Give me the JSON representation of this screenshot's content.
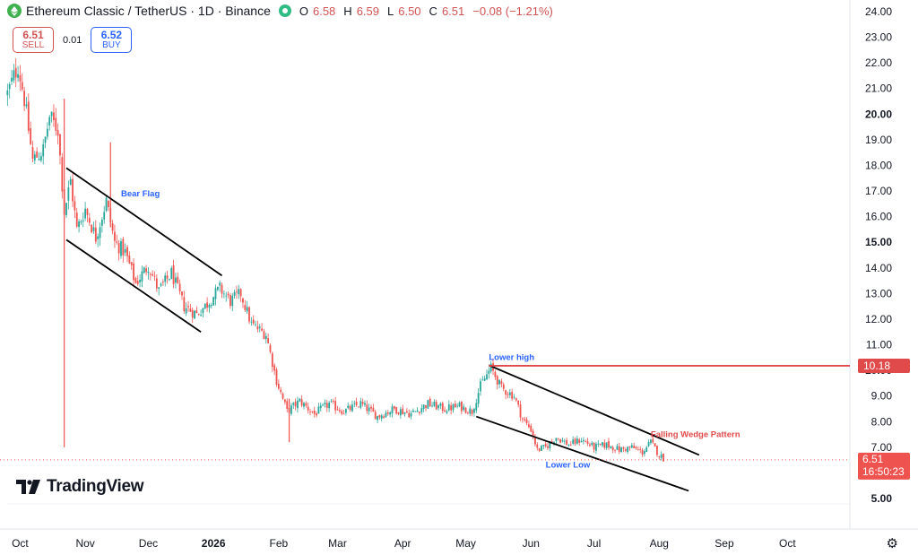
{
  "header": {
    "symbol_title": "Ethereum Classic / TetherUS · 1D · Binance",
    "ohlc": {
      "o_label": "O",
      "o": "6.58",
      "h_label": "H",
      "h": "6.59",
      "l_label": "L",
      "l": "6.50",
      "c_label": "C",
      "c": "6.51",
      "change": "−0.08 (−1.21%)"
    }
  },
  "trade": {
    "sell_price": "6.51",
    "sell_label": "SELL",
    "spread": "0.01",
    "buy_price": "6.52",
    "buy_label": "BUY"
  },
  "brand": {
    "name": "TradingView"
  },
  "colors": {
    "up": "#26a69a",
    "down": "#ef5350",
    "resistance": "#e04a4a",
    "annotation": "#2962ff",
    "annotation_red": "#e04a4a"
  },
  "chart_data": {
    "type": "candlestick",
    "title": "Ethereum Classic / TetherUS · 1D · Binance",
    "ylim": [
      5.0,
      24.0
    ],
    "y_ticks": [
      "24.00",
      "23.00",
      "22.00",
      "21.00",
      "20.00",
      "19.00",
      "18.00",
      "17.00",
      "16.00",
      "15.00",
      "14.00",
      "13.00",
      "12.00",
      "11.00",
      "10.00",
      "9.00",
      "8.00",
      "7.00",
      "6.00",
      "5.00"
    ],
    "bold_ticks": [
      "20.00",
      "15.00",
      "10.00",
      "5.00"
    ],
    "x_labels": [
      "Oct",
      "Nov",
      "Dec",
      "2026",
      "Feb",
      "Mar",
      "Apr",
      "May",
      "Jun",
      "Jul",
      "Aug",
      "Sep",
      "Oct"
    ],
    "bold_x": [
      "2026"
    ],
    "last_price": {
      "value": "6.51",
      "countdown": "16:50:23"
    },
    "resistance": {
      "value": 10.18,
      "label": "10.18"
    },
    "key_points": [
      [
        "2025-09-25",
        20.8
      ],
      [
        "2025-09-30",
        21.9
      ],
      [
        "2025-10-03",
        20.6
      ],
      [
        "2025-10-07",
        18.2
      ],
      [
        "2025-10-12",
        18.6
      ],
      [
        "2025-10-15",
        19.9
      ],
      [
        "2025-10-19",
        19.4
      ],
      [
        "2025-10-22",
        16.2
      ],
      [
        "2025-10-25",
        17.4
      ],
      [
        "2025-10-28",
        15.5
      ],
      [
        "2025-11-01",
        16.3
      ],
      [
        "2025-11-06",
        15.2
      ],
      [
        "2025-11-11",
        16.6
      ],
      [
        "2025-11-15",
        15.0
      ],
      [
        "2025-11-20",
        14.6
      ],
      [
        "2025-11-25",
        13.4
      ],
      [
        "2025-12-01",
        14.1
      ],
      [
        "2025-12-06",
        13.1
      ],
      [
        "2025-12-12",
        13.8
      ],
      [
        "2025-12-18",
        12.5
      ],
      [
        "2025-12-24",
        12.2
      ],
      [
        "2025-12-29",
        12.6
      ],
      [
        "2026-01-04",
        13.2
      ],
      [
        "2026-01-09",
        12.7
      ],
      [
        "2026-01-14",
        13.0
      ],
      [
        "2026-01-19",
        11.8
      ],
      [
        "2026-01-26",
        11.4
      ],
      [
        "2026-01-31",
        9.6
      ],
      [
        "2026-02-05",
        8.4
      ],
      [
        "2026-02-11",
        8.8
      ],
      [
        "2026-02-18",
        8.3
      ],
      [
        "2026-02-25",
        8.7
      ],
      [
        "2026-03-04",
        8.4
      ],
      [
        "2026-03-12",
        8.7
      ],
      [
        "2026-03-20",
        8.2
      ],
      [
        "2026-03-28",
        8.5
      ],
      [
        "2026-04-05",
        8.3
      ],
      [
        "2026-04-13",
        8.7
      ],
      [
        "2026-04-21",
        8.5
      ],
      [
        "2026-04-28",
        8.6
      ],
      [
        "2026-05-04",
        8.4
      ],
      [
        "2026-05-08",
        9.4
      ],
      [
        "2026-05-13",
        10.1
      ],
      [
        "2026-05-18",
        9.3
      ],
      [
        "2026-05-24",
        9.0
      ],
      [
        "2026-05-28",
        8.1
      ],
      [
        "2026-06-01",
        7.7
      ],
      [
        "2026-06-04",
        6.9
      ],
      [
        "2026-06-08",
        7.0
      ],
      [
        "2026-06-13",
        7.4
      ],
      [
        "2026-06-19",
        7.1
      ],
      [
        "2026-06-25",
        7.3
      ],
      [
        "2026-07-01",
        7.0
      ],
      [
        "2026-07-07",
        7.1
      ],
      [
        "2026-07-13",
        6.9
      ],
      [
        "2026-07-19",
        7.0
      ],
      [
        "2026-07-24",
        6.8
      ],
      [
        "2026-07-28",
        7.2
      ],
      [
        "2026-08-01",
        6.7
      ],
      [
        "2026-08-04",
        6.5
      ]
    ],
    "spikes": [
      {
        "date": "2025-10-22",
        "high": 20.6,
        "low": 7.0
      },
      {
        "date": "2025-11-13",
        "high": 18.9,
        "low": 15.6
      },
      {
        "date": "2026-02-06",
        "high": 8.9,
        "low": 7.2
      }
    ],
    "trendlines": [
      {
        "from": [
          "2025-10-23",
          17.9
        ],
        "to": [
          "2026-01-05",
          13.7
        ],
        "color": "#000000"
      },
      {
        "from": [
          "2025-10-23",
          15.1
        ],
        "to": [
          "2025-12-26",
          11.5
        ],
        "color": "#000000"
      },
      {
        "from": [
          "2026-05-12",
          10.2
        ],
        "to": [
          "2026-08-20",
          6.7
        ],
        "color": "#000000"
      },
      {
        "from": [
          "2026-05-06",
          8.2
        ],
        "to": [
          "2026-08-15",
          5.3
        ],
        "color": "#000000"
      },
      {
        "from": [
          "2026-05-12",
          10.18
        ],
        "to": [
          "2026-10-31",
          10.18
        ],
        "color": "#e04a4a"
      }
    ],
    "annotations": [
      {
        "text": "Bear Flag",
        "date": "2025-11-18",
        "value": 16.8,
        "color": "#2962ff"
      },
      {
        "text": "Lower high",
        "date": "2026-05-12",
        "value": 10.4,
        "color": "#2962ff"
      },
      {
        "text": "Falling Wedge Pattern",
        "date": "2026-07-28",
        "value": 7.4,
        "color": "#e04a4a"
      },
      {
        "text": "Lower Low",
        "date": "2026-06-08",
        "value": 6.2,
        "color": "#2962ff"
      }
    ]
  }
}
